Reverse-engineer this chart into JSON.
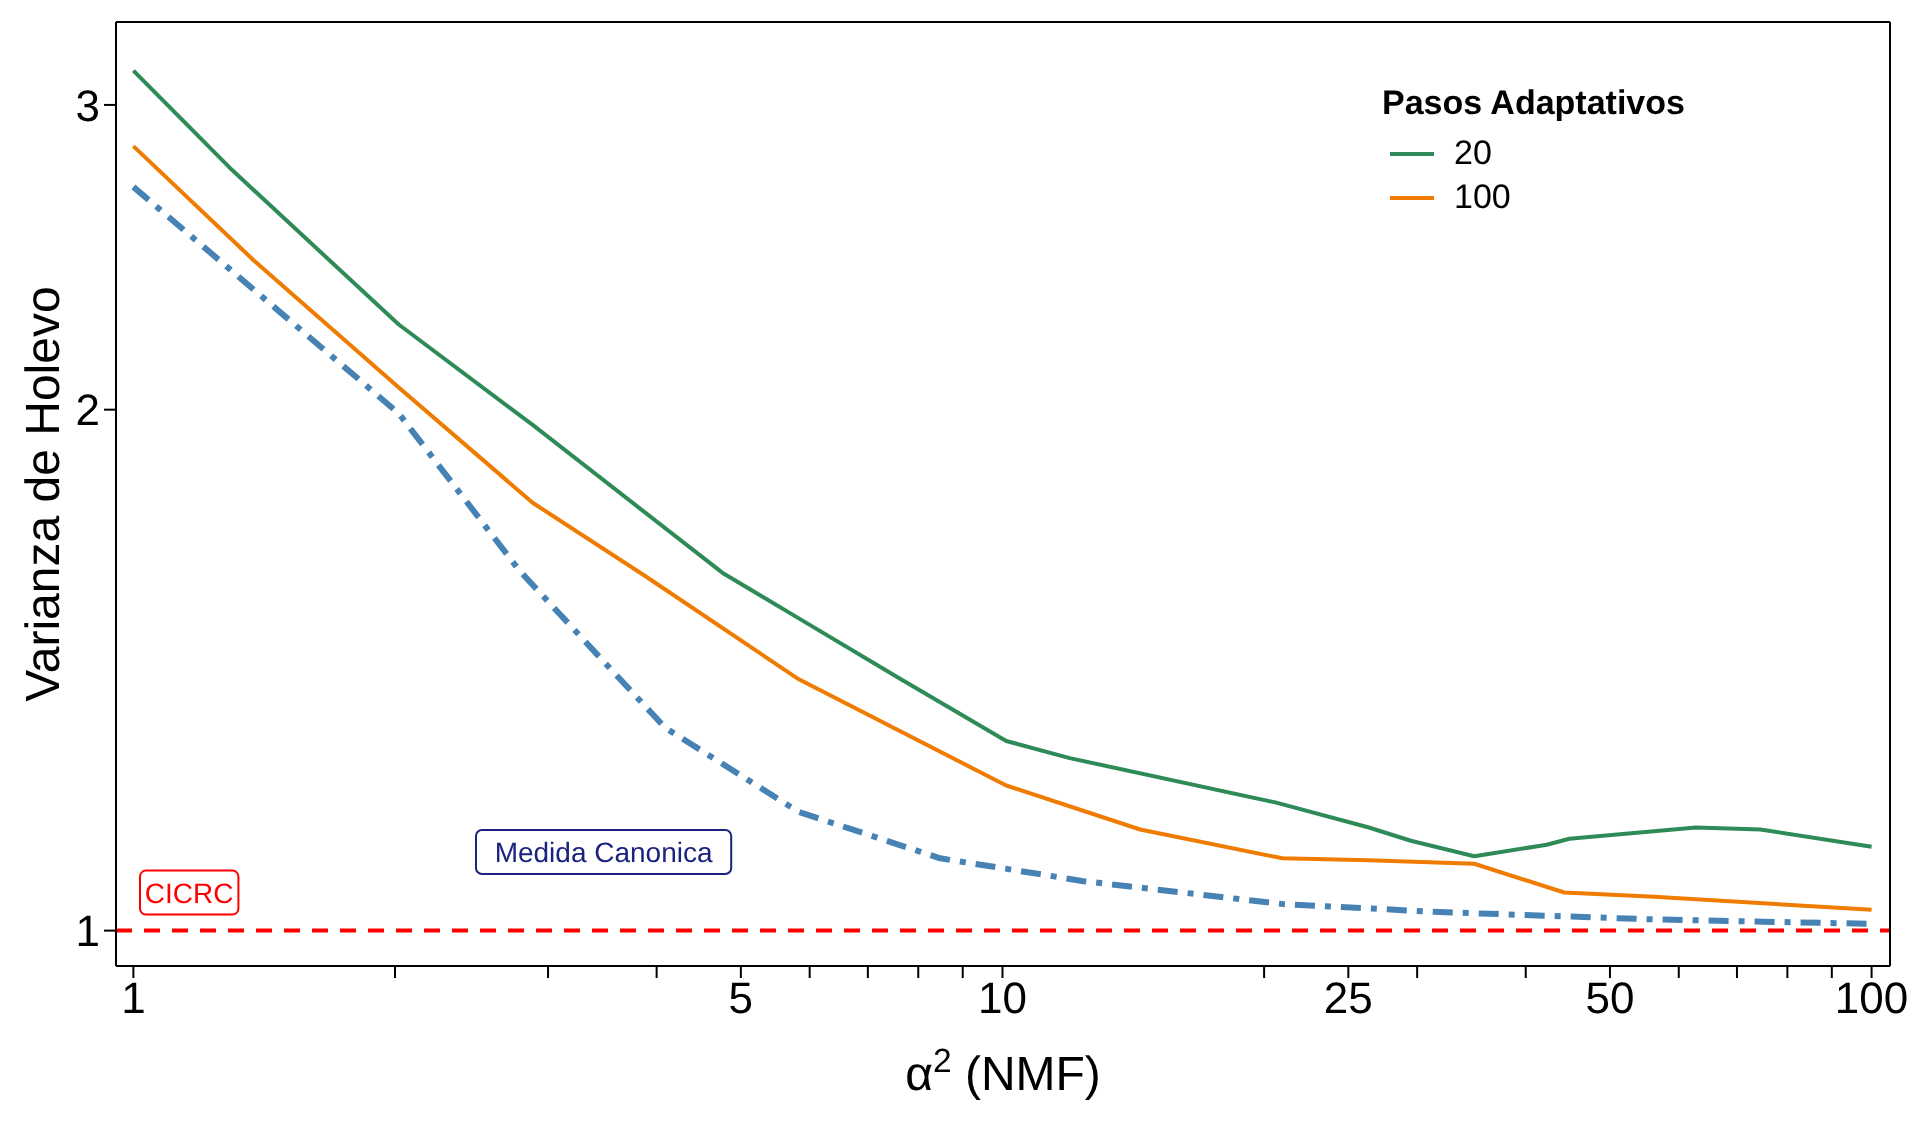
{
  "chart_data": {
    "type": "line",
    "xlabel": "α$^{2}$ (NMF)",
    "ylabel": "Varianza de Holevo",
    "legend_title": "Pasos Adaptativos",
    "legend": "top right",
    "log": "xy",
    "line_style": "solid",
    "marker": "none",
    "xlim": [
      0.955,
      105
    ],
    "ylim": [
      0.954,
      3.35
    ],
    "xticks": [
      1,
      {
        "value": 2,
        "label": null
      },
      {
        "value": 3,
        "label": null
      },
      {
        "value": 4,
        "label": null
      },
      5,
      {
        "value": 6,
        "label": null
      },
      {
        "value": 7,
        "label": null
      },
      {
        "value": 8,
        "label": null
      },
      {
        "value": 9,
        "label": null
      },
      10,
      {
        "value": 20,
        "label": null
      },
      25,
      {
        "value": 30,
        "label": null
      },
      {
        "value": 40,
        "label": null
      },
      50,
      {
        "value": 60,
        "label": null
      },
      {
        "value": 70,
        "label": null
      },
      {
        "value": 80,
        "label": null
      },
      {
        "value": 90,
        "label": null
      },
      100
    ],
    "yticks": [
      1,
      2,
      3
    ],
    "series": [
      {
        "name": "20",
        "color": "#2e8b57",
        "x": [
          1,
          1.3,
          2.02,
          2.88,
          4.76,
          5.83,
          7.59,
          10.1,
          11.95,
          20.6,
          26.4,
          29.5,
          34.9,
          42.3,
          44.9,
          62.8,
          74.5,
          100
        ],
        "values": [
          3.14,
          2.75,
          2.24,
          1.96,
          1.61,
          1.515,
          1.4,
          1.287,
          1.258,
          1.186,
          1.147,
          1.127,
          1.104,
          1.121,
          1.13,
          1.147,
          1.144,
          1.118
        ]
      },
      {
        "name": "100",
        "color": "#ef7c00",
        "x": [
          1,
          1.375,
          2.02,
          2.88,
          3.88,
          5.83,
          10.1,
          14.4,
          21,
          26.4,
          34.9,
          44.3,
          56.2,
          100
        ],
        "values": [
          2.84,
          2.44,
          2.06,
          1.767,
          1.603,
          1.397,
          1.213,
          1.144,
          1.101,
          1.098,
          1.093,
          1.052,
          1.046,
          1.028
        ]
      },
      {
        "color": "#4682b4",
        "line_style": "dashdot",
        "x": [
          1,
          2.02,
          2.78,
          4.09,
          5.83,
          8.48,
          12.4,
          21,
          31.8,
          56.2,
          100
        ],
        "values": [
          2.69,
          1.99,
          1.615,
          1.31,
          1.171,
          1.101,
          1.068,
          1.036,
          1.025,
          1.015,
          1.009
        ]
      }
    ],
    "ref_lines": [
      {
        "axis": "y",
        "value": 1,
        "label": "CICRC",
        "color": "#ff0000",
        "line_style": "dashed"
      }
    ],
    "annotations": [
      "Medida Canonica"
    ]
  }
}
